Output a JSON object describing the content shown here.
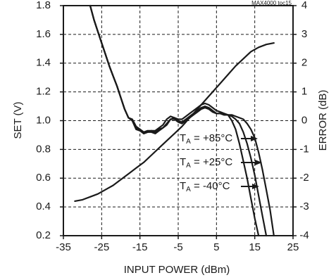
{
  "chart_data": {
    "type": "line",
    "figure_id": "MAX4000 toc15",
    "xlabel": "INPUT POWER (dBm)",
    "ylabel_left": "SET (V)",
    "ylabel_right": "ERROR (dB)",
    "xlim": [
      -35,
      25
    ],
    "ylim_left": [
      0.2,
      1.8
    ],
    "ylim_right": [
      -4,
      4
    ],
    "x_ticks": [
      -35,
      -25,
      -15,
      -5,
      5,
      15,
      25
    ],
    "y_ticks_left": [
      0.2,
      0.4,
      0.6,
      0.8,
      1.0,
      1.2,
      1.4,
      1.6,
      1.8
    ],
    "y_ticks_right": [
      -4,
      -3,
      -2,
      -1,
      0,
      1,
      2,
      3,
      4
    ],
    "x_tick_labels": [
      "-35",
      "-25",
      "-15",
      "-5",
      "5",
      "15",
      "25"
    ],
    "y_tick_labels_left": [
      "0.2",
      "0.4",
      "0.6",
      "0.8",
      "1.0",
      "1.2",
      "1.4",
      "1.6",
      "1.8"
    ],
    "y_tick_labels_right": [
      "-4",
      "-3",
      "-2",
      "-1",
      "0",
      "1",
      "2",
      "3",
      "4"
    ],
    "grid": true,
    "annotations": [
      {
        "text": "T",
        "sub": "A",
        "rest": " = +85°C"
      },
      {
        "text": "T",
        "sub": "A",
        "rest": " = +25°C"
      },
      {
        "text": "T",
        "sub": "A",
        "rest": " = -40°C"
      }
    ],
    "series": [
      {
        "axis": "left",
        "x": [
          -32,
          -30,
          -28,
          -26,
          -24,
          -22,
          -20,
          -18,
          -16,
          -14,
          -12,
          -10,
          -8,
          -6,
          -4,
          -2,
          0,
          2,
          4,
          6,
          8,
          10,
          12,
          14,
          16,
          18,
          20
        ],
        "values": [
          0.44,
          0.45,
          0.47,
          0.49,
          0.52,
          0.55,
          0.59,
          0.63,
          0.67,
          0.71,
          0.76,
          0.81,
          0.86,
          0.91,
          0.96,
          1.02,
          1.08,
          1.14,
          1.2,
          1.26,
          1.32,
          1.38,
          1.43,
          1.48,
          1.51,
          1.53,
          1.54
        ]
      },
      {
        "axis": "right",
        "x": [
          -28,
          -27,
          -26,
          -25,
          -24,
          -23,
          -22,
          -21,
          -20,
          -19,
          -18,
          -17,
          -16,
          -15,
          -14,
          -13,
          -12,
          -11,
          -10,
          -9,
          -8,
          -7,
          -6,
          -5,
          -4,
          -3,
          -2,
          -1,
          0,
          1,
          2,
          3,
          4,
          5,
          6,
          7,
          8,
          9,
          10,
          11,
          12,
          13,
          14,
          15,
          16,
          17,
          18,
          19,
          20
        ],
        "values": [
          4.0,
          3.5,
          3.1,
          2.7,
          2.3,
          1.9,
          1.55,
          1.2,
          0.8,
          0.4,
          0.1,
          0.05,
          -0.2,
          -0.3,
          -0.4,
          -0.35,
          -0.35,
          -0.4,
          -0.3,
          -0.25,
          -0.15,
          0.05,
          0.1,
          0.0,
          -0.05,
          0.05,
          0.15,
          0.25,
          0.35,
          0.45,
          0.5,
          0.45,
          0.35,
          0.25,
          0.25,
          0.2,
          0.2,
          0.2,
          0.15,
          0.1,
          0.05,
          -0.1,
          -0.3,
          -0.6,
          -1.1,
          -1.7,
          -2.4,
          -3.1,
          -4.0
        ]
      },
      {
        "axis": "right",
        "x": [
          -28,
          -27,
          -26,
          -25,
          -24,
          -23,
          -22,
          -21,
          -20,
          -19,
          -18,
          -17,
          -16,
          -15,
          -14,
          -13,
          -12,
          -11,
          -10,
          -9,
          -8,
          -7,
          -6,
          -5,
          -4,
          -3,
          -2,
          -1,
          0,
          1,
          2,
          3,
          4,
          5,
          6,
          7,
          8,
          9,
          10,
          11,
          12,
          13,
          14,
          15,
          16,
          17,
          18
        ],
        "values": [
          4.0,
          3.5,
          3.1,
          2.7,
          2.3,
          1.9,
          1.55,
          1.2,
          0.8,
          0.4,
          0.1,
          0.0,
          -0.25,
          -0.3,
          -0.45,
          -0.4,
          -0.4,
          -0.45,
          -0.35,
          -0.25,
          -0.1,
          0.05,
          0.05,
          -0.05,
          -0.1,
          0.0,
          0.1,
          0.2,
          0.3,
          0.4,
          0.45,
          0.4,
          0.3,
          0.25,
          0.25,
          0.2,
          0.2,
          0.15,
          0.05,
          -0.1,
          -0.4,
          -0.8,
          -1.3,
          -1.9,
          -2.6,
          -3.3,
          -4.0
        ]
      },
      {
        "axis": "right",
        "x": [
          -28,
          -27,
          -26,
          -25,
          -24,
          -23,
          -22,
          -21,
          -20,
          -19,
          -18,
          -17,
          -16,
          -15,
          -14,
          -13,
          -12,
          -11,
          -10,
          -9,
          -8,
          -7,
          -6,
          -5,
          -4,
          -3,
          -2,
          -1,
          0,
          1,
          2,
          3,
          4,
          5,
          6,
          7,
          8,
          9,
          10,
          11,
          12,
          13,
          14,
          15,
          16
        ],
        "values": [
          4.0,
          3.5,
          3.1,
          2.7,
          2.3,
          1.9,
          1.55,
          1.2,
          0.8,
          0.4,
          0.1,
          0.0,
          -0.3,
          -0.35,
          -0.45,
          -0.4,
          -0.35,
          -0.35,
          -0.25,
          -0.15,
          0.05,
          0.15,
          0.1,
          0.05,
          0.05,
          0.15,
          0.25,
          0.35,
          0.45,
          0.55,
          0.6,
          0.55,
          0.45,
          0.35,
          0.3,
          0.25,
          0.2,
          0.0,
          -0.3,
          -0.8,
          -1.4,
          -2.0,
          -2.7,
          -3.4,
          -4.0
        ]
      }
    ]
  }
}
